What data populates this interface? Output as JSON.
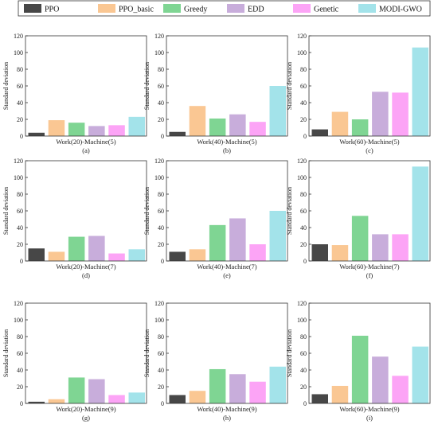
{
  "legend": {
    "series": [
      {
        "name": "PPO",
        "color": "#474747"
      },
      {
        "name": "PPO_basic",
        "color": "#fac793"
      },
      {
        "name": "Greedy",
        "color": "#7fd593"
      },
      {
        "name": "EDD",
        "color": "#c8addb"
      },
      {
        "name": "Genetic",
        "color": "#fca4f6"
      },
      {
        "name": "MODI-GWO",
        "color": "#a3e3ea"
      }
    ]
  },
  "chart_data": [
    {
      "type": "bar",
      "panel": "(a)",
      "xlabel": "Work(20)-Machine(5)",
      "ylabel": "Standard deviation",
      "ylim": [
        0,
        120
      ],
      "yticks": [
        0,
        20,
        40,
        60,
        80,
        100,
        120
      ],
      "values": [
        4,
        19,
        16,
        12,
        13,
        23
      ]
    },
    {
      "type": "bar",
      "panel": "(b)",
      "xlabel": "Work(40)-Machine(5)",
      "ylabel": "Standard deviation",
      "ylim": [
        0,
        120
      ],
      "yticks": [
        0,
        20,
        40,
        60,
        80,
        100,
        120
      ],
      "values": [
        5,
        36,
        21,
        26,
        17,
        60
      ]
    },
    {
      "type": "bar",
      "panel": "(c)",
      "xlabel": "Work(60)-Machine(5)",
      "ylabel": "Standard deviation",
      "ylim": [
        0,
        120
      ],
      "yticks": [
        0,
        20,
        40,
        60,
        80,
        100,
        120
      ],
      "values": [
        8,
        29,
        20,
        53,
        52,
        106
      ]
    },
    {
      "type": "bar",
      "panel": "(d)",
      "xlabel": "Work(20)-Machine(7)",
      "ylabel": "Standard deviation",
      "ylim": [
        0,
        120
      ],
      "yticks": [
        0,
        20,
        40,
        60,
        80,
        100,
        120
      ],
      "values": [
        15,
        11,
        29,
        30,
        9,
        14
      ]
    },
    {
      "type": "bar",
      "panel": "(e)",
      "xlabel": "Work(40)-Machine(7)",
      "ylabel": "Standard deviation",
      "ylim": [
        0,
        120
      ],
      "yticks": [
        0,
        20,
        40,
        60,
        80,
        100,
        120
      ],
      "values": [
        11,
        14,
        43,
        51,
        20,
        60
      ]
    },
    {
      "type": "bar",
      "panel": "(f)",
      "xlabel": "Work(60)-Machine(7)",
      "ylabel": "Standard deviation",
      "ylim": [
        0,
        120
      ],
      "yticks": [
        0,
        20,
        40,
        60,
        80,
        100,
        120
      ],
      "values": [
        20,
        19,
        54,
        32,
        32,
        113
      ]
    },
    {
      "type": "bar",
      "panel": "(g)",
      "xlabel": "Work(20)-Machine(9)",
      "ylabel": "Standard deviation",
      "ylim": [
        0,
        120
      ],
      "yticks": [
        0,
        20,
        40,
        60,
        80,
        100,
        120
      ],
      "values": [
        2,
        5,
        31,
        29,
        10,
        13
      ]
    },
    {
      "type": "bar",
      "panel": "(h)",
      "xlabel": "Work(40)-Machine(9)",
      "ylabel": "Standard deviation",
      "ylim": [
        0,
        120
      ],
      "yticks": [
        0,
        20,
        40,
        60,
        80,
        100,
        120
      ],
      "values": [
        10,
        15,
        41,
        35,
        26,
        44
      ]
    },
    {
      "type": "bar",
      "panel": "(i)",
      "xlabel": "Work(60)-Machine(9)",
      "ylabel": "Standard deviation",
      "ylim": [
        0,
        120
      ],
      "yticks": [
        0,
        20,
        40,
        60,
        80,
        100,
        120
      ],
      "values": [
        11,
        21,
        81,
        56,
        33,
        68
      ]
    }
  ]
}
